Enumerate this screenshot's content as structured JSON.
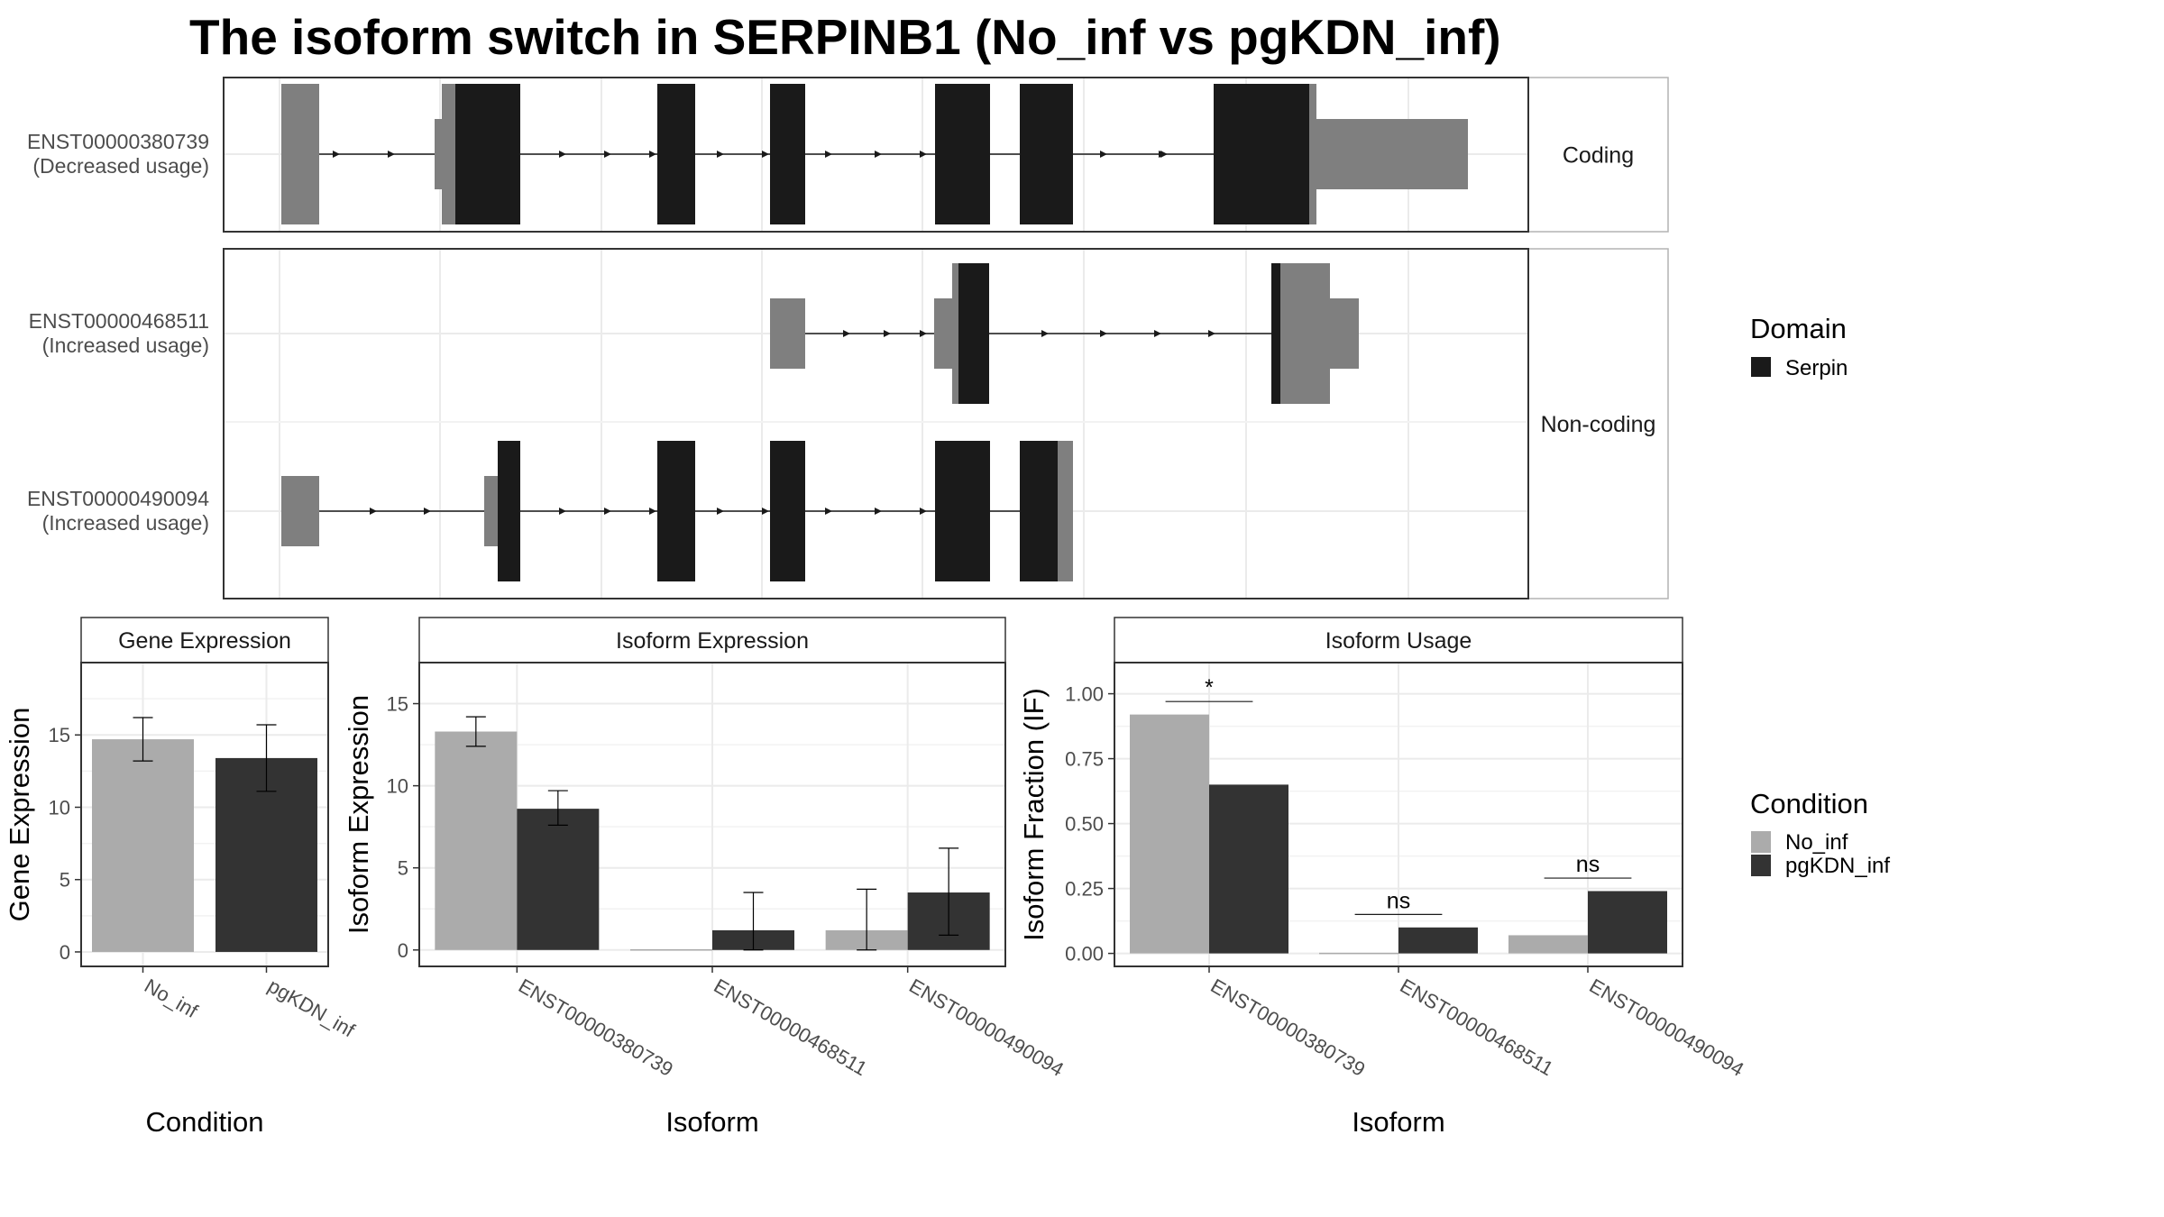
{
  "title": "The isoform switch in SERPINB1 (No_inf vs pgKDN_inf)",
  "colors": {
    "no_inf": "#ababab",
    "pgkdn_inf": "#333333",
    "serpin": "#1a1a1a",
    "utr": "#7f7f7f"
  },
  "chart_data": [
    {
      "type": "gene_structure",
      "panel": "Transcript structure",
      "domain_legend": {
        "title": "Domain",
        "items": [
          "Serpin"
        ]
      },
      "groups": [
        {
          "label": "Coding",
          "transcripts": [
            "ENST00000380739"
          ]
        },
        {
          "label": "Non-coding",
          "transcripts": [
            "ENST00000468511",
            "ENST00000490094"
          ]
        }
      ],
      "transcripts": [
        {
          "id": "ENST00000380739",
          "usage": "(Decreased usage)",
          "group": "Coding"
        },
        {
          "id": "ENST00000468511",
          "usage": "(Increased usage)",
          "group": "Non-coding"
        },
        {
          "id": "ENST00000490094",
          "usage": "(Increased usage)",
          "group": "Non-coding"
        }
      ]
    },
    {
      "type": "bar",
      "strip": "Gene Expression",
      "xlabel": "Condition",
      "ylabel": "Gene Expression",
      "ylim": [
        -1,
        20
      ],
      "yticks": [
        0,
        5,
        10,
        15
      ],
      "categories": [
        "No_inf",
        "pgKDN_inf"
      ],
      "values": [
        14.7,
        13.4
      ],
      "error_low": [
        13.2,
        11.1
      ],
      "error_high": [
        16.2,
        15.7
      ]
    },
    {
      "type": "bar",
      "strip": "Isoform Expression",
      "xlabel": "Isoform",
      "ylabel": "Isoform Expression",
      "ylim": [
        -1,
        17.5
      ],
      "yticks": [
        0,
        5,
        10,
        15
      ],
      "categories": [
        "ENST00000380739",
        "ENST00000468511",
        "ENST00000490094"
      ],
      "series": [
        {
          "name": "No_inf",
          "values": [
            13.3,
            0.0,
            1.2
          ],
          "error_low": [
            12.4,
            0.0,
            0.0
          ],
          "error_high": [
            14.2,
            0.0,
            3.7
          ]
        },
        {
          "name": "pgKDN_inf",
          "values": [
            8.6,
            1.2,
            3.5
          ],
          "error_low": [
            7.6,
            0.0,
            0.9
          ],
          "error_high": [
            9.7,
            3.5,
            6.2
          ]
        }
      ]
    },
    {
      "type": "bar",
      "strip": "Isoform Usage",
      "xlabel": "Isoform",
      "ylabel": "Isoform Fraction (IF)",
      "ylim": [
        -0.05,
        1.12
      ],
      "yticks": [
        "0.00",
        "0.25",
        "0.50",
        "0.75",
        "1.00"
      ],
      "categories": [
        "ENST00000380739",
        "ENST00000468511",
        "ENST00000490094"
      ],
      "series": [
        {
          "name": "No_inf",
          "values": [
            0.92,
            0.0,
            0.07
          ]
        },
        {
          "name": "pgKDN_inf",
          "values": [
            0.65,
            0.1,
            0.24
          ]
        }
      ],
      "significance": [
        "*",
        "ns",
        "ns"
      ]
    }
  ],
  "condition_legend": {
    "title": "Condition",
    "items": [
      "No_inf",
      "pgKDN_inf"
    ]
  }
}
